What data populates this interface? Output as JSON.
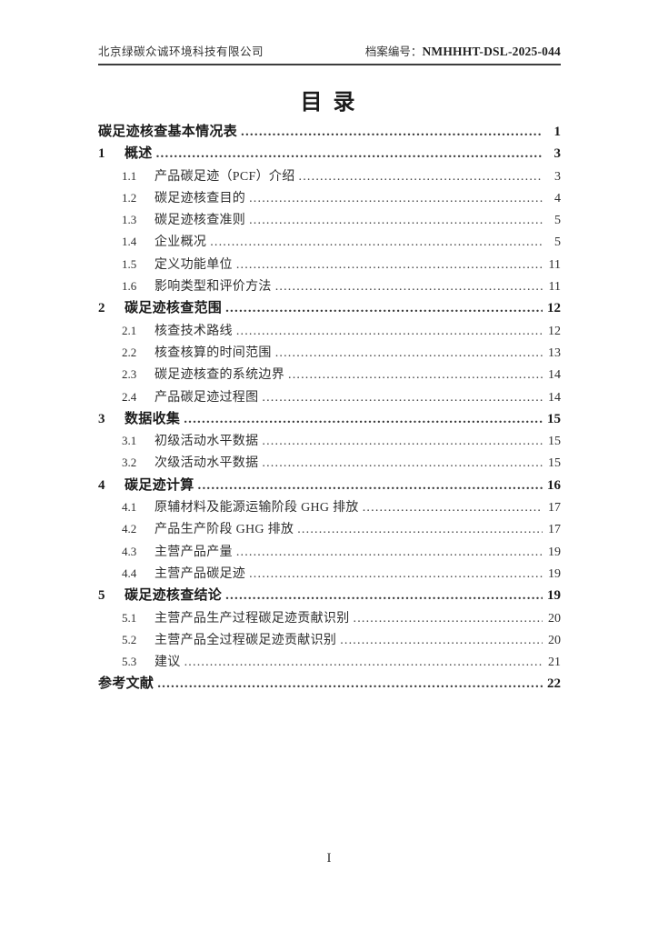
{
  "header": {
    "company": "北京绿碳众诚环境科技有限公司",
    "archive_label": "档案编号：",
    "archive_number": "NMHHHT-DSL-2025-044"
  },
  "title": "目 录",
  "toc": {
    "entries": [
      {
        "num": "",
        "label": "碳足迹核查基本情况表",
        "page": "1",
        "level": 0
      },
      {
        "num": "1",
        "label": "概述",
        "page": "3",
        "level": 0
      },
      {
        "num": "1.1",
        "label": "产品碳足迹（PCF）介绍",
        "page": "3",
        "level": 1
      },
      {
        "num": "1.2",
        "label": "碳足迹核查目的",
        "page": "4",
        "level": 1
      },
      {
        "num": "1.3",
        "label": "碳足迹核查准则",
        "page": "5",
        "level": 1
      },
      {
        "num": "1.4",
        "label": "企业概况",
        "page": "5",
        "level": 1
      },
      {
        "num": "1.5",
        "label": "定义功能单位",
        "page": "11",
        "level": 1
      },
      {
        "num": "1.6",
        "label": "影响类型和评价方法",
        "page": "11",
        "level": 1
      },
      {
        "num": "2",
        "label": "碳足迹核查范围",
        "page": "12",
        "level": 0
      },
      {
        "num": "2.1",
        "label": "核查技术路线",
        "page": "12",
        "level": 1
      },
      {
        "num": "2.2",
        "label": "核查核算的时间范围",
        "page": "13",
        "level": 1
      },
      {
        "num": "2.3",
        "label": "碳足迹核查的系统边界",
        "page": "14",
        "level": 1
      },
      {
        "num": "2.4",
        "label": "产品碳足迹过程图",
        "page": "14",
        "level": 1
      },
      {
        "num": "3",
        "label": "数据收集",
        "page": "15",
        "level": 0
      },
      {
        "num": "3.1",
        "label": "初级活动水平数据",
        "page": "15",
        "level": 1
      },
      {
        "num": "3.2",
        "label": "次级活动水平数据",
        "page": "15",
        "level": 1
      },
      {
        "num": "4",
        "label": "碳足迹计算",
        "page": "16",
        "level": 0
      },
      {
        "num": "4.1",
        "label": "原辅材料及能源运输阶段 GHG 排放",
        "page": "17",
        "level": 1
      },
      {
        "num": "4.2",
        "label": "产品生产阶段 GHG 排放",
        "page": "17",
        "level": 1
      },
      {
        "num": "4.3",
        "label": "主营产品产量",
        "page": "19",
        "level": 1
      },
      {
        "num": "4.4",
        "label": "主营产品碳足迹",
        "page": "19",
        "level": 1
      },
      {
        "num": "5",
        "label": "碳足迹核查结论",
        "page": "19",
        "level": 0
      },
      {
        "num": "5.1",
        "label": "主营产品生产过程碳足迹贡献识别",
        "page": "20",
        "level": 1
      },
      {
        "num": "5.2",
        "label": "主营产品全过程碳足迹贡献识别",
        "page": "20",
        "level": 1
      },
      {
        "num": "5.3",
        "label": "建议",
        "page": "21",
        "level": 1
      },
      {
        "num": "",
        "label": "参考文献",
        "page": "22",
        "level": 0
      }
    ]
  },
  "footer": {
    "page_number": "I"
  }
}
